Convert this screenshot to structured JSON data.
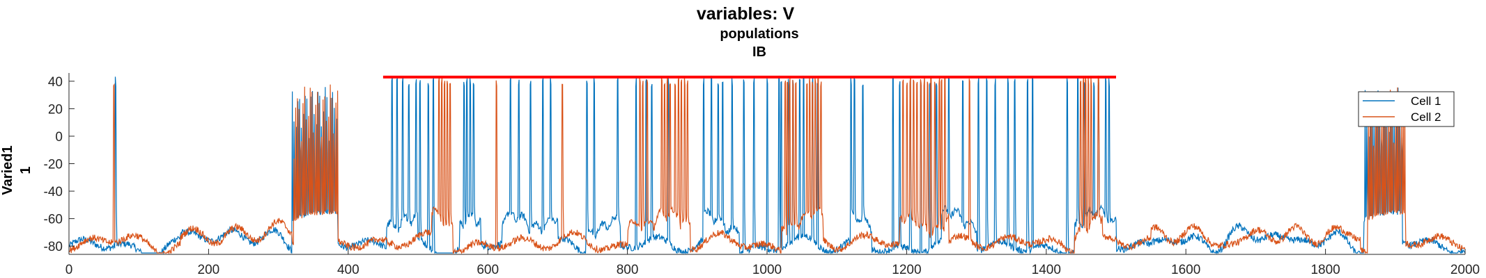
{
  "chart_data": {
    "type": "line",
    "title": "variables: V",
    "subtitle": "populations",
    "subtitle2": "IB",
    "ylabel_line1": "Varied1",
    "ylabel_line2": "1",
    "xlim": [
      0,
      2000
    ],
    "ylim": [
      -86,
      46
    ],
    "xticks": [
      0,
      200,
      400,
      600,
      800,
      1000,
      1200,
      1400,
      1600,
      1800,
      2000
    ],
    "yticks": [
      40,
      20,
      0,
      -20,
      -40,
      -60,
      -80
    ],
    "grid": false,
    "legend_position": "top-right",
    "series": [
      {
        "name": "Cell 1",
        "color": "#0072BD",
        "baseline": -80,
        "bursts": [
          [
            320,
            385
          ],
          [
            1855,
            1910
          ]
        ],
        "spikes": [
          67,
          463,
          470,
          478,
          487,
          497,
          503,
          515,
          522,
          566,
          570,
          575,
          580,
          632,
          644,
          661,
          679,
          690,
          742,
          752,
          786,
          812,
          827,
          835,
          859,
          909,
          920,
          930,
          936,
          950,
          967,
          981,
          1000,
          1017,
          1020,
          1031,
          1037,
          1047,
          1052,
          1065,
          1072,
          1120,
          1125,
          1137,
          1180,
          1190,
          1205,
          1220,
          1233,
          1243,
          1260,
          1280,
          1303,
          1315,
          1327,
          1345,
          1355,
          1373,
          1380,
          1430,
          1445,
          1455,
          1468,
          1475,
          1485,
          1490
        ],
        "depolarized": [
          [
            455,
            500
          ],
          [
            560,
            590
          ],
          [
            620,
            700
          ],
          [
            740,
            790
          ],
          [
            910,
            960
          ],
          [
            1120,
            1150
          ],
          [
            1250,
            1300
          ],
          [
            1440,
            1500
          ]
        ]
      },
      {
        "name": "Cell 2",
        "color": "#D95319",
        "baseline": -78,
        "bursts": [
          [
            322,
            385
          ],
          [
            1860,
            1915
          ]
        ],
        "spikes": [
          64,
          530,
          534,
          538,
          542,
          546,
          612,
          707,
          818,
          822,
          828,
          849,
          853,
          857,
          861,
          868,
          873,
          877,
          882,
          886,
          1026,
          1029,
          1032,
          1037,
          1041,
          1057,
          1061,
          1065,
          1069,
          1073,
          1077,
          1195,
          1200,
          1205,
          1210,
          1215,
          1220,
          1225,
          1230,
          1235,
          1240,
          1247,
          1250,
          1255,
          1290,
          1449,
          1453,
          1456,
          1460,
          1464,
          1475
        ],
        "depolarized": [
          [
            520,
            550
          ],
          [
            800,
            890
          ],
          [
            1020,
            1080
          ],
          [
            1190,
            1260
          ],
          [
            1440,
            1480
          ]
        ]
      }
    ],
    "annotation_line": {
      "color": "#ff0000",
      "x_start": 450,
      "x_end": 1500,
      "y": 43
    }
  }
}
